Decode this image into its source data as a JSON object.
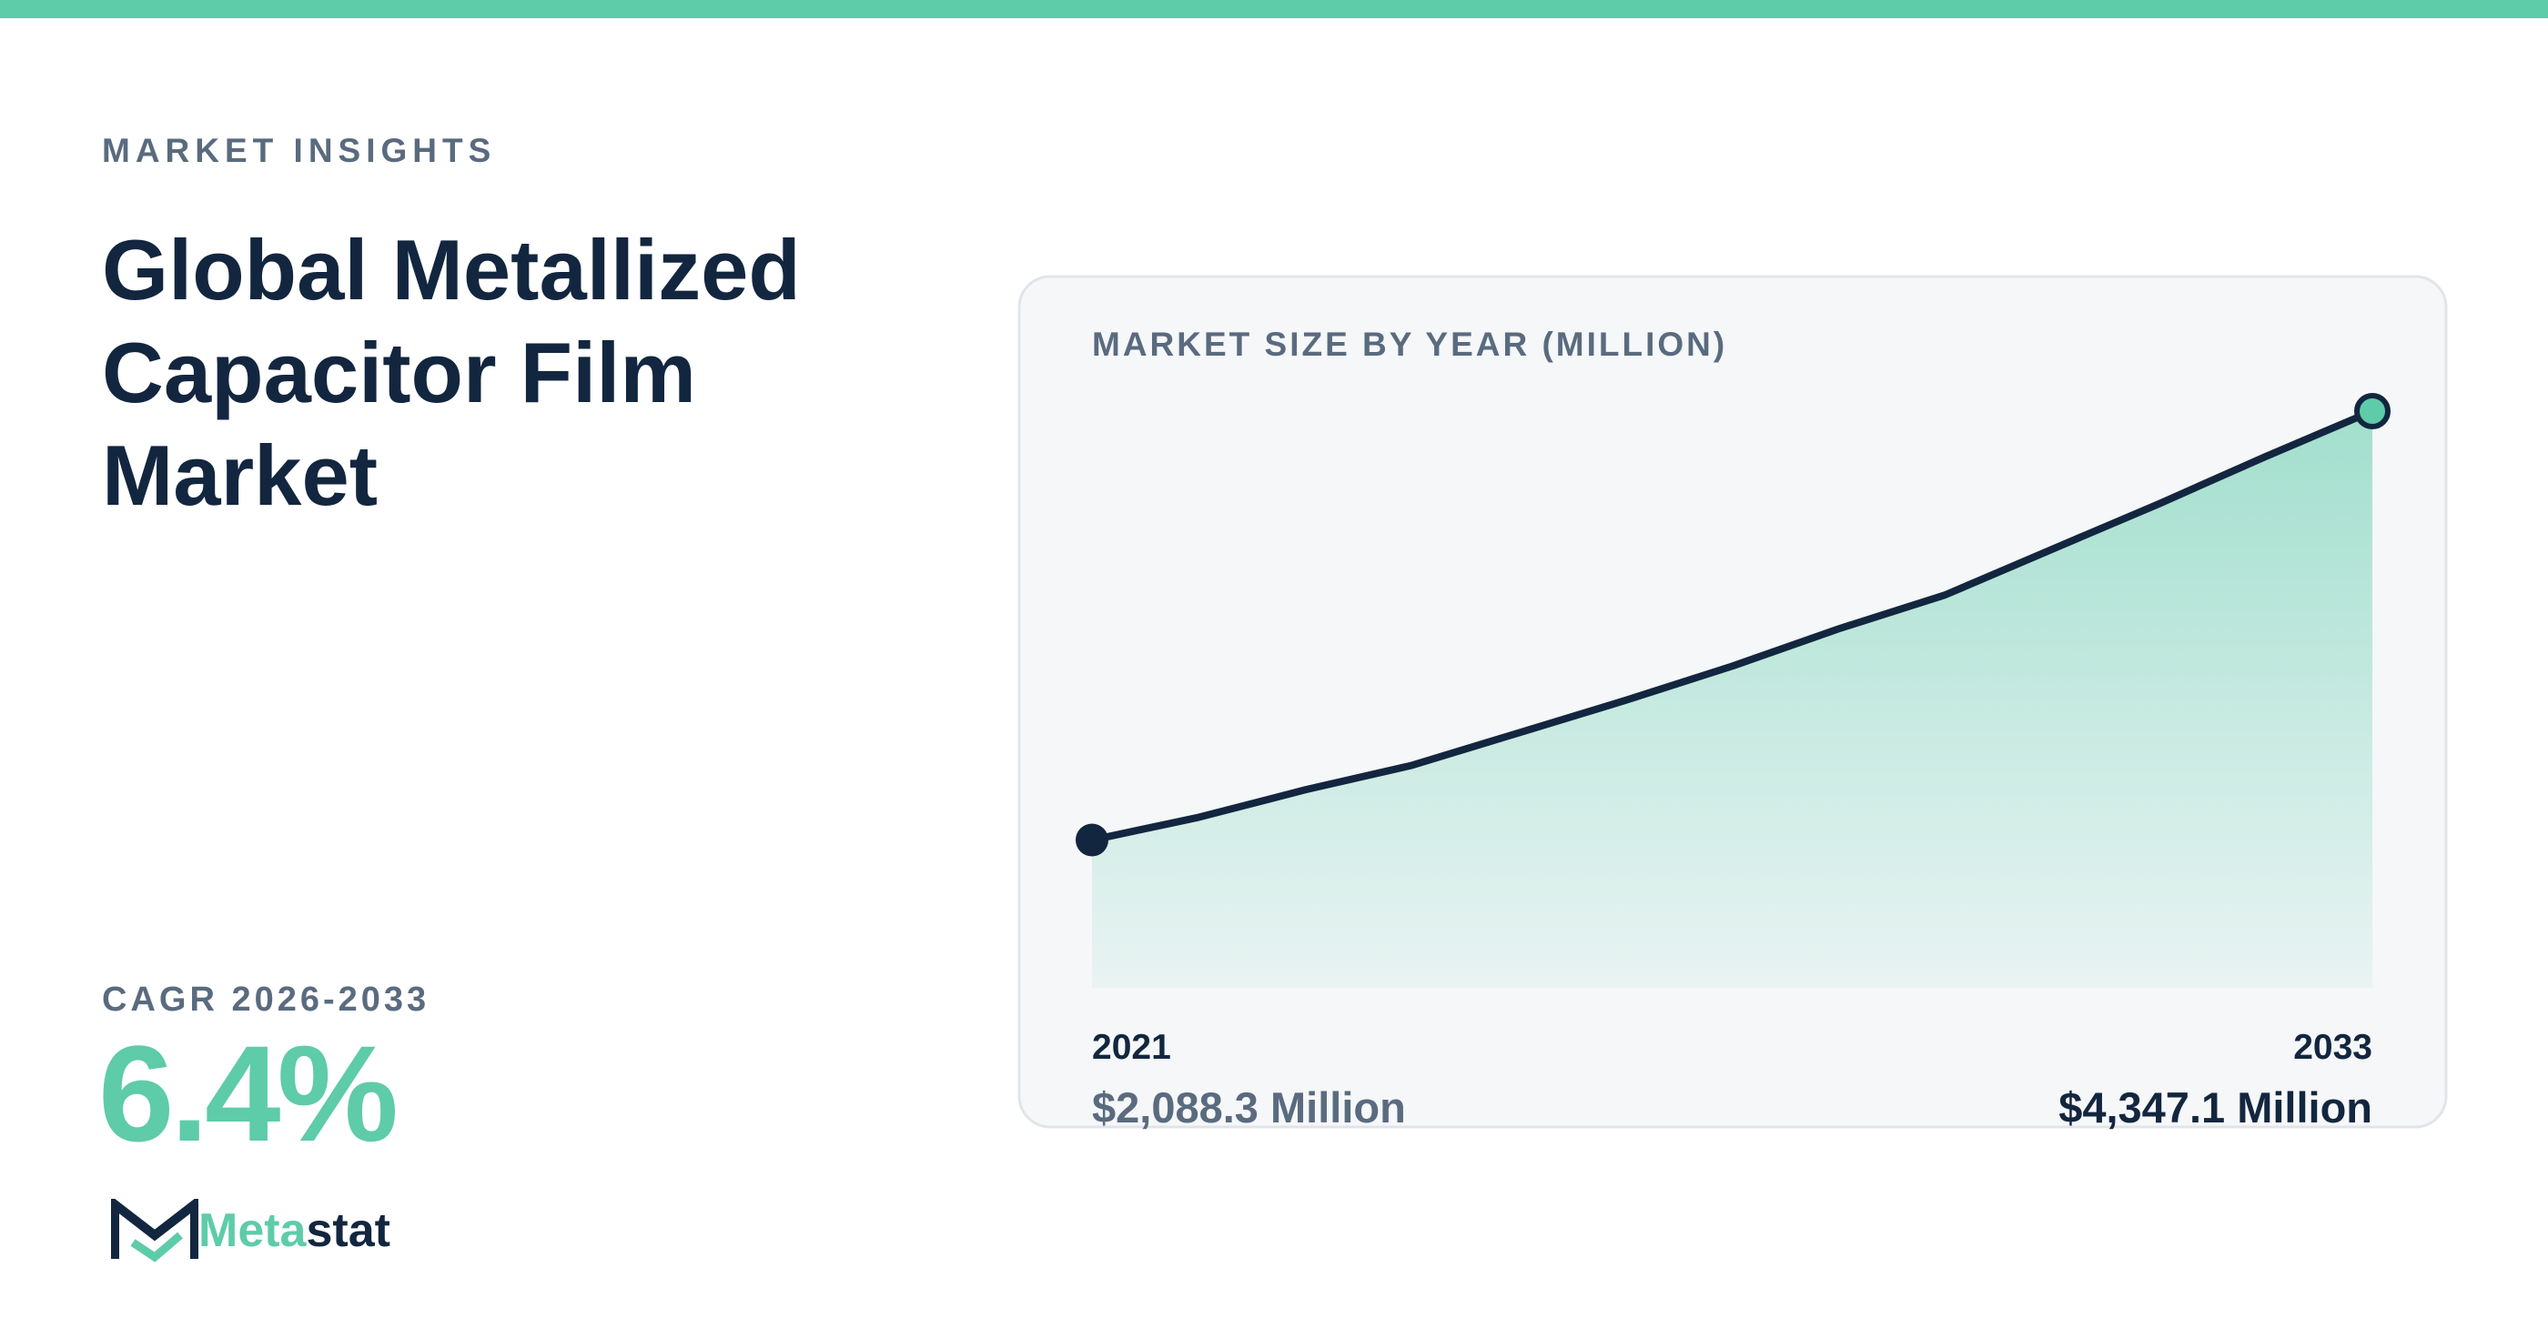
{
  "header": {
    "eyebrow": "MARKET INSIGHTS",
    "title": "Global Metallized Capacitor Film Market"
  },
  "cagr": {
    "label": "CAGR 2026-2033",
    "value": "6.4%"
  },
  "logo": {
    "part1": "Meta",
    "part2": "stat"
  },
  "chart_data": {
    "type": "area",
    "title": "MARKET SIZE BY YEAR (MILLION)",
    "categories": [
      "2021",
      null,
      null,
      null,
      null,
      null,
      null,
      null,
      null,
      null,
      null,
      null,
      "2033"
    ],
    "values": [
      2088.3,
      2208,
      2353,
      2482,
      2653,
      2824,
      3004,
      3201,
      3380,
      3620,
      3859,
      4108,
      4347.1
    ],
    "value_labels": [
      "$2,088.3 Million",
      null,
      null,
      null,
      null,
      null,
      null,
      null,
      null,
      null,
      null,
      null,
      "$4,347.1 Million"
    ],
    "ylim": [
      1310,
      4347.1
    ],
    "line_color": "#13263f",
    "fill_color": "#5ecba9"
  }
}
